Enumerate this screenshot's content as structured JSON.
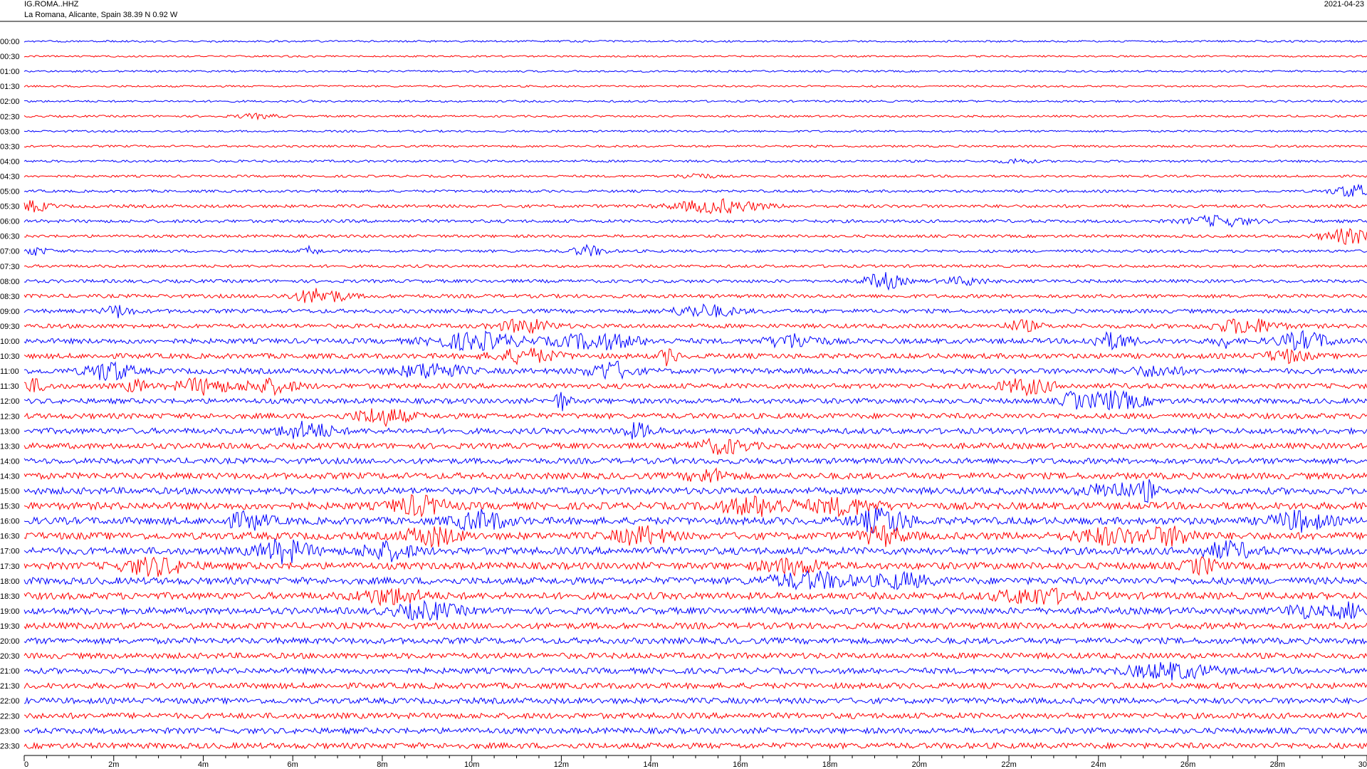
{
  "header": {
    "station": "IG.ROMA..HHZ",
    "location": "La Romana, Alicante, Spain  38.39 N 0.92 W",
    "date": "2021-04-23"
  },
  "chart_data": {
    "type": "line",
    "subtype": "helicorder",
    "row_labels": [
      "00:00",
      "00:30",
      "01:00",
      "01:30",
      "02:00",
      "02:30",
      "03:00",
      "03:30",
      "04:00",
      "04:30",
      "05:00",
      "05:30",
      "06:00",
      "06:30",
      "07:00",
      "07:30",
      "08:00",
      "08:30",
      "09:00",
      "09:30",
      "10:00",
      "10:30",
      "11:00",
      "11:30",
      "12:00",
      "12:30",
      "13:00",
      "13:30",
      "14:00",
      "14:30",
      "15:00",
      "15:30",
      "16:00",
      "16:30",
      "17:00",
      "17:30",
      "18:00",
      "18:30",
      "19:00",
      "19:30",
      "20:00",
      "20:30",
      "21:00",
      "21:30",
      "22:00",
      "22:30",
      "23:00",
      "23:30"
    ],
    "x_ticks": [
      "0",
      "2m",
      "4m",
      "6m",
      "8m",
      "10m",
      "12m",
      "14m",
      "16m",
      "18m",
      "20m",
      "22m",
      "24m",
      "26m",
      "28m",
      "30"
    ],
    "xlim": [
      0,
      30
    ],
    "row_colors": [
      "#0000ff",
      "#ff0000"
    ],
    "noise_amplitude": [
      1.3,
      1.2,
      1.3,
      1.3,
      1.4,
      1.4,
      1.4,
      1.5,
      1.6,
      1.6,
      1.8,
      2.2,
      2.2,
      2.0,
      2.0,
      2.0,
      2.3,
      2.6,
      2.8,
      3.0,
      3.6,
      3.6,
      3.8,
      3.6,
      3.6,
      3.8,
      4.0,
      4.0,
      4.0,
      4.4,
      4.6,
      5.0,
      5.0,
      5.0,
      5.0,
      4.8,
      4.8,
      4.8,
      4.6,
      4.4,
      4.2,
      4.0,
      4.0,
      4.0,
      4.0,
      4.0,
      4.0,
      4.0
    ],
    "events": [
      {
        "row": "02:30",
        "minute": 5.2,
        "amplitude": 3,
        "duration": 0.8
      },
      {
        "row": "04:00",
        "minute": 22.2,
        "amplitude": 3,
        "duration": 0.6
      },
      {
        "row": "04:30",
        "minute": 15.0,
        "amplitude": 4,
        "duration": 0.6
      },
      {
        "row": "05:00",
        "minute": 29.7,
        "amplitude": 8,
        "duration": 0.8
      },
      {
        "row": "05:30",
        "minute": 0.2,
        "amplitude": 7,
        "duration": 0.6
      },
      {
        "row": "05:30",
        "minute": 15.5,
        "amplitude": 9,
        "duration": 1.6
      },
      {
        "row": "06:00",
        "minute": 26.7,
        "amplitude": 7,
        "duration": 1.2
      },
      {
        "row": "06:30",
        "minute": 29.6,
        "amplitude": 10,
        "duration": 1.0
      },
      {
        "row": "07:00",
        "minute": 0.2,
        "amplitude": 5,
        "duration": 0.6
      },
      {
        "row": "07:00",
        "minute": 6.4,
        "amplitude": 6,
        "duration": 0.3
      },
      {
        "row": "07:00",
        "minute": 12.6,
        "amplitude": 7,
        "duration": 0.6
      },
      {
        "row": "08:00",
        "minute": 19.2,
        "amplitude": 11,
        "duration": 0.7
      },
      {
        "row": "08:00",
        "minute": 21.0,
        "amplitude": 5,
        "duration": 0.8
      },
      {
        "row": "08:30",
        "minute": 6.6,
        "amplitude": 10,
        "duration": 1.0
      },
      {
        "row": "09:00",
        "minute": 2.1,
        "amplitude": 8,
        "duration": 0.5
      },
      {
        "row": "09:00",
        "minute": 15.2,
        "amplitude": 8,
        "duration": 1.2
      },
      {
        "row": "09:30",
        "minute": 11.2,
        "amplitude": 9,
        "duration": 1.0
      },
      {
        "row": "09:30",
        "minute": 22.3,
        "amplitude": 7,
        "duration": 0.6
      },
      {
        "row": "09:30",
        "minute": 27.3,
        "amplitude": 10,
        "duration": 1.2
      },
      {
        "row": "10:00",
        "minute": 10.1,
        "amplitude": 11,
        "duration": 1.6
      },
      {
        "row": "10:00",
        "minute": 12.8,
        "amplitude": 10,
        "duration": 1.6
      },
      {
        "row": "10:00",
        "minute": 17.2,
        "amplitude": 9,
        "duration": 1.0
      },
      {
        "row": "10:00",
        "minute": 24.3,
        "amplitude": 10,
        "duration": 0.8
      },
      {
        "row": "10:00",
        "minute": 26.8,
        "amplitude": 8,
        "duration": 0.3
      },
      {
        "row": "10:00",
        "minute": 28.6,
        "amplitude": 11,
        "duration": 1.0
      },
      {
        "row": "10:30",
        "minute": 11.2,
        "amplitude": 9,
        "duration": 1.2
      },
      {
        "row": "10:30",
        "minute": 14.4,
        "amplitude": 12,
        "duration": 0.3
      },
      {
        "row": "10:30",
        "minute": 28.2,
        "amplitude": 8,
        "duration": 0.8
      },
      {
        "row": "11:00",
        "minute": 1.9,
        "amplitude": 13,
        "duration": 0.8
      },
      {
        "row": "11:00",
        "minute": 9.1,
        "amplitude": 10,
        "duration": 1.2
      },
      {
        "row": "11:00",
        "minute": 13.1,
        "amplitude": 12,
        "duration": 0.8
      },
      {
        "row": "11:00",
        "minute": 25.3,
        "amplitude": 6,
        "duration": 1.0
      },
      {
        "row": "11:30",
        "minute": 0.2,
        "amplitude": 8,
        "duration": 0.5
      },
      {
        "row": "11:30",
        "minute": 2.5,
        "amplitude": 8,
        "duration": 0.4
      },
      {
        "row": "11:30",
        "minute": 4.0,
        "amplitude": 10,
        "duration": 1.0
      },
      {
        "row": "11:30",
        "minute": 5.5,
        "amplitude": 9,
        "duration": 1.0
      },
      {
        "row": "11:30",
        "minute": 22.4,
        "amplitude": 10,
        "duration": 1.0
      },
      {
        "row": "12:00",
        "minute": 12.0,
        "amplitude": 12,
        "duration": 0.3
      },
      {
        "row": "12:00",
        "minute": 23.4,
        "amplitude": 10,
        "duration": 0.3
      },
      {
        "row": "12:00",
        "minute": 24.3,
        "amplitude": 12,
        "duration": 1.2
      },
      {
        "row": "12:30",
        "minute": 8.0,
        "amplitude": 11,
        "duration": 1.0
      },
      {
        "row": "13:00",
        "minute": 6.3,
        "amplitude": 11,
        "duration": 1.0
      },
      {
        "row": "13:00",
        "minute": 13.7,
        "amplitude": 9,
        "duration": 0.6
      },
      {
        "row": "13:30",
        "minute": 15.6,
        "amplitude": 9,
        "duration": 1.0
      },
      {
        "row": "14:30",
        "minute": 15.3,
        "amplitude": 8,
        "duration": 0.8
      },
      {
        "row": "15:00",
        "minute": 24.3,
        "amplitude": 10,
        "duration": 1.0
      },
      {
        "row": "15:00",
        "minute": 25.1,
        "amplitude": 12,
        "duration": 0.3
      },
      {
        "row": "15:30",
        "minute": 8.8,
        "amplitude": 12,
        "duration": 1.0
      },
      {
        "row": "15:30",
        "minute": 16.4,
        "amplitude": 11,
        "duration": 1.4
      },
      {
        "row": "15:30",
        "minute": 18.3,
        "amplitude": 10,
        "duration": 1.2
      },
      {
        "row": "16:00",
        "minute": 5.0,
        "amplitude": 10,
        "duration": 0.8
      },
      {
        "row": "16:00",
        "minute": 10.2,
        "amplitude": 12,
        "duration": 1.0
      },
      {
        "row": "16:00",
        "minute": 19.2,
        "amplitude": 16,
        "duration": 1.0
      },
      {
        "row": "16:00",
        "minute": 28.5,
        "amplitude": 12,
        "duration": 1.0
      },
      {
        "row": "16:30",
        "minute": 9.1,
        "amplitude": 12,
        "duration": 1.0
      },
      {
        "row": "16:30",
        "minute": 13.8,
        "amplitude": 11,
        "duration": 1.0
      },
      {
        "row": "16:30",
        "minute": 19.2,
        "amplitude": 12,
        "duration": 0.8
      },
      {
        "row": "16:30",
        "minute": 24.2,
        "amplitude": 10,
        "duration": 1.2
      },
      {
        "row": "16:30",
        "minute": 25.6,
        "amplitude": 11,
        "duration": 1.0
      },
      {
        "row": "17:00",
        "minute": 5.8,
        "amplitude": 14,
        "duration": 1.0
      },
      {
        "row": "17:00",
        "minute": 8.1,
        "amplitude": 11,
        "duration": 1.0
      },
      {
        "row": "17:00",
        "minute": 26.9,
        "amplitude": 10,
        "duration": 1.0
      },
      {
        "row": "17:30",
        "minute": 2.9,
        "amplitude": 11,
        "duration": 1.2
      },
      {
        "row": "17:30",
        "minute": 17.2,
        "amplitude": 9,
        "duration": 1.2
      },
      {
        "row": "17:30",
        "minute": 26.3,
        "amplitude": 10,
        "duration": 0.6
      },
      {
        "row": "18:00",
        "minute": 17.6,
        "amplitude": 10,
        "duration": 1.6
      },
      {
        "row": "18:00",
        "minute": 19.6,
        "amplitude": 9,
        "duration": 1.0
      },
      {
        "row": "18:30",
        "minute": 8.2,
        "amplitude": 10,
        "duration": 1.2
      },
      {
        "row": "18:30",
        "minute": 22.6,
        "amplitude": 10,
        "duration": 1.4
      },
      {
        "row": "19:00",
        "minute": 9.0,
        "amplitude": 10,
        "duration": 1.2
      },
      {
        "row": "19:00",
        "minute": 28.5,
        "amplitude": 8,
        "duration": 0.6
      },
      {
        "row": "19:00",
        "minute": 29.6,
        "amplitude": 9,
        "duration": 0.8
      },
      {
        "row": "21:00",
        "minute": 25.6,
        "amplitude": 10,
        "duration": 1.6
      }
    ]
  }
}
